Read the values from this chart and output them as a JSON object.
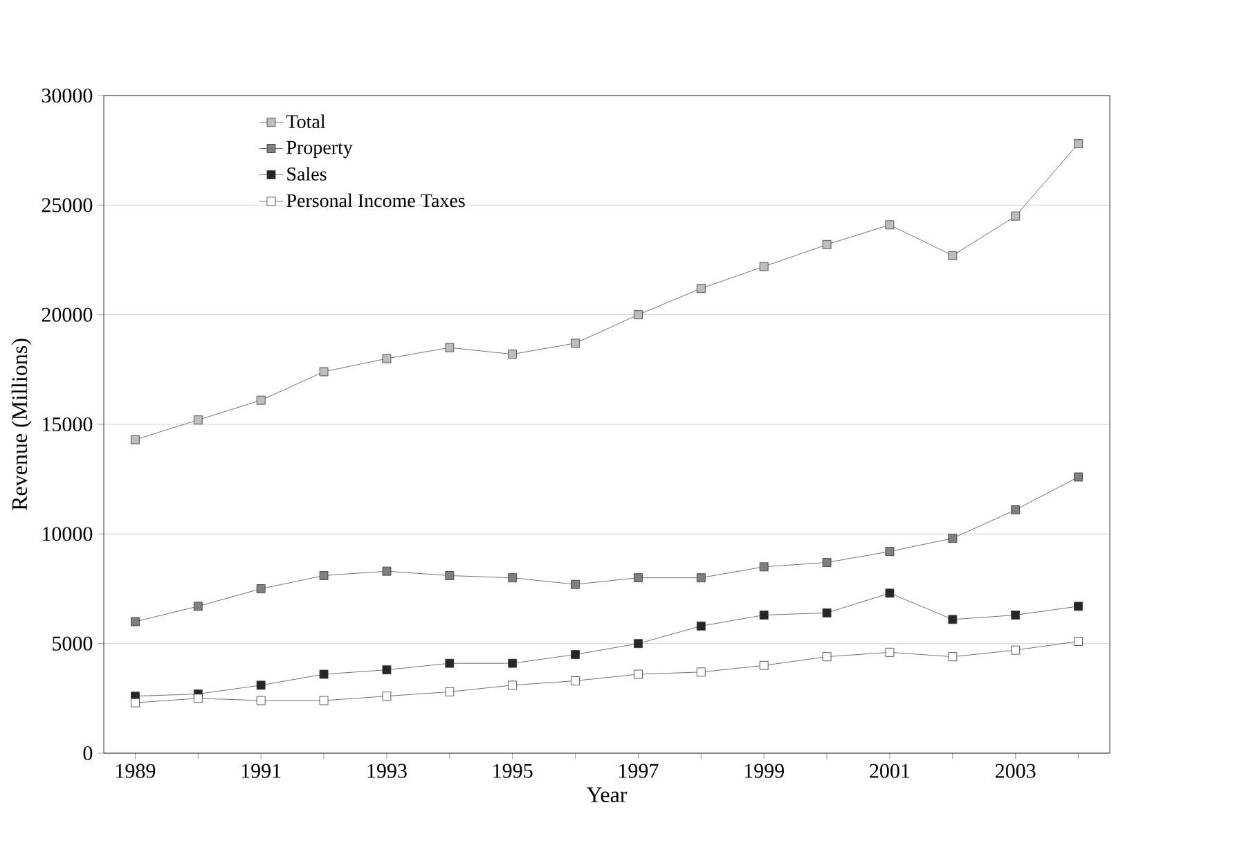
{
  "chart_data": {
    "type": "line",
    "xlabel": "Year",
    "ylabel": "Revenue (Millions)",
    "x": [
      1989,
      1990,
      1991,
      1992,
      1993,
      1994,
      1995,
      1996,
      1997,
      1998,
      1999,
      2000,
      2001,
      2002,
      2003,
      2004
    ],
    "series": [
      {
        "name": "Total",
        "color": "#bdbdbd",
        "values": [
          14300,
          15200,
          16100,
          17400,
          18000,
          18500,
          18200,
          18700,
          20000,
          21200,
          22200,
          23200,
          24100,
          22700,
          24500,
          27800
        ]
      },
      {
        "name": "Property",
        "color": "#808080",
        "values": [
          6000,
          6700,
          7500,
          8100,
          8300,
          8100,
          8000,
          7700,
          8000,
          8000,
          8500,
          8700,
          9200,
          9800,
          11100,
          12600
        ]
      },
      {
        "name": "Sales",
        "color": "#262626",
        "values": [
          2600,
          2700,
          3100,
          3600,
          3800,
          4100,
          4100,
          4500,
          5000,
          5800,
          6300,
          6400,
          7300,
          6100,
          6300,
          6700
        ]
      },
      {
        "name": "Personal Income Taxes",
        "color": "#ffffff",
        "values": [
          2300,
          2500,
          2400,
          2400,
          2600,
          2800,
          3100,
          3300,
          3600,
          3700,
          4000,
          4400,
          4600,
          4400,
          4700,
          5100
        ]
      }
    ],
    "xlim": [
      1988.5,
      2004.5
    ],
    "xticks": [
      1989,
      {
        "value": 1990,
        "label": null
      },
      1991,
      {
        "value": 1992,
        "label": null
      },
      1993,
      {
        "value": 1994,
        "label": null
      },
      1995,
      {
        "value": 1996,
        "label": null
      },
      1997,
      {
        "value": 1998,
        "label": null
      },
      1999,
      {
        "value": 2000,
        "label": null
      },
      2001,
      {
        "value": 2002,
        "label": null
      },
      2003,
      {
        "value": 2004,
        "label": null
      }
    ],
    "ylim": [
      0,
      30000
    ],
    "yticks": [
      0,
      5000,
      10000,
      15000,
      20000,
      25000,
      30000
    ],
    "grid": "y",
    "legend": "top left",
    "marker": "square",
    "line_style": "solid"
  }
}
